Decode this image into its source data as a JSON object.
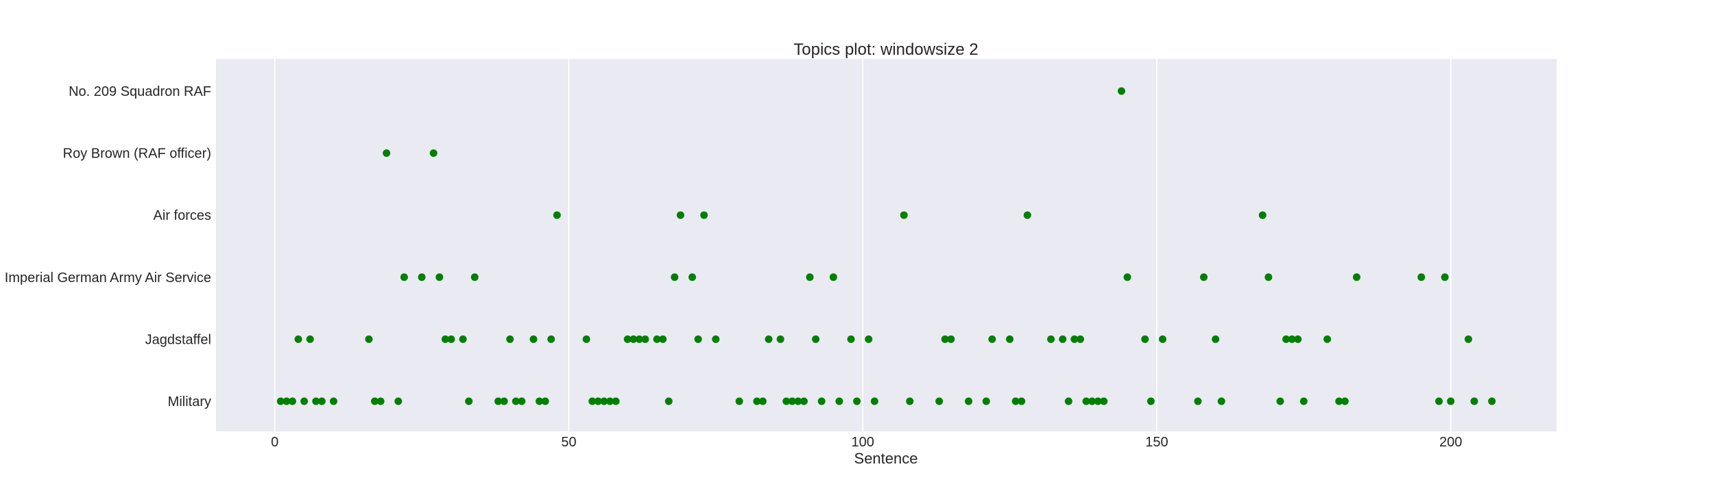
{
  "chart_data": {
    "type": "scatter",
    "title": "Topics plot: windowsize 2",
    "xlabel": "Sentence",
    "ylabel": "",
    "xlim": [
      -10,
      218
    ],
    "xticks": [
      0,
      50,
      100,
      150,
      200
    ],
    "grid": "vertical",
    "color": "#008000",
    "categories": [
      "Military",
      "Jagdstaffel",
      "Imperial German Army Air Service",
      "Air forces",
      "Roy Brown (RAF officer)",
      "No. 209 Squadron RAF"
    ],
    "series": [
      {
        "category": "Military",
        "x": [
          1,
          2,
          3,
          5,
          7,
          8,
          10,
          17,
          18,
          21,
          33,
          38,
          39,
          41,
          42,
          45,
          46,
          54,
          55,
          56,
          57,
          58,
          67,
          79,
          82,
          83,
          87,
          88,
          89,
          90,
          93,
          96,
          99,
          102,
          108,
          113,
          118,
          121,
          126,
          127,
          135,
          138,
          139,
          140,
          141,
          149,
          157,
          161,
          171,
          175,
          181,
          182,
          198,
          200,
          204,
          207
        ]
      },
      {
        "category": "Jagdstaffel",
        "x": [
          4,
          6,
          16,
          29,
          30,
          32,
          40,
          44,
          47,
          53,
          60,
          61,
          62,
          63,
          65,
          66,
          72,
          75,
          84,
          86,
          92,
          98,
          101,
          114,
          115,
          122,
          125,
          132,
          134,
          136,
          137,
          148,
          151,
          160,
          172,
          173,
          174,
          179,
          203
        ]
      },
      {
        "category": "Imperial German Army Air Service",
        "x": [
          22,
          25,
          28,
          34,
          68,
          71,
          91,
          95,
          145,
          158,
          169,
          184,
          195,
          199
        ]
      },
      {
        "category": "Air forces",
        "x": [
          48,
          69,
          73,
          107,
          128,
          168
        ]
      },
      {
        "category": "Roy Brown (RAF officer)",
        "x": [
          19,
          27
        ]
      },
      {
        "category": "No. 209 Squadron RAF",
        "x": [
          144
        ]
      }
    ]
  }
}
